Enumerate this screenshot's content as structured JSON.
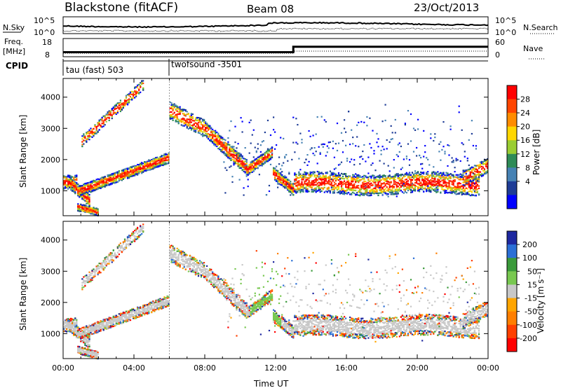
{
  "header": {
    "station": "Blackstone (fitACF)",
    "beam": "Beam 08",
    "date": "23/Oct/2013"
  },
  "noise_panel": {
    "left_label": "N.Sky",
    "right_label": "N.Search",
    "y_ticks_left": [
      "10^5",
      "10^0"
    ],
    "y_ticks_right": [
      "10^5",
      "10^0"
    ]
  },
  "freq_panel": {
    "left_label_line1": "Freq.",
    "left_label_line2": "[MHz]",
    "right_label": "Nave",
    "y_ticks_left": [
      "18",
      "8"
    ],
    "y_ticks_right": [
      "60",
      "0"
    ],
    "freq_mhz": [
      {
        "from_h": 0,
        "to_h": 13,
        "value": 10.5
      },
      {
        "from_h": 13,
        "to_h": 24,
        "value": 13.5
      }
    ]
  },
  "cpid": {
    "label": "CPID",
    "modes": [
      {
        "start_h": 0,
        "name": "tau (fast) 503"
      },
      {
        "start_h": 6,
        "name": "twofsound -3501"
      }
    ]
  },
  "chart_data": [
    {
      "type": "heatmap",
      "name": "power",
      "ylabel": "Slant Range [km]",
      "yticks": [
        1000,
        2000,
        3000,
        4000
      ],
      "ylim": [
        200,
        4600
      ],
      "xlim_h": [
        0,
        24
      ],
      "colorbar": {
        "label": "Power [dB]",
        "ticks": [
          "28",
          "24",
          "20",
          "16",
          "12",
          "8",
          "4"
        ],
        "colors": [
          "#ff0000",
          "#ff4500",
          "#ff8c00",
          "#ffd700",
          "#9acd32",
          "#2e8b57",
          "#4682b4",
          "#1e3c96",
          "#0000ff"
        ]
      }
    },
    {
      "type": "heatmap",
      "name": "velocity",
      "ylabel": "Slant Range [km]",
      "yticks": [
        1000,
        2000,
        3000,
        4000
      ],
      "ylim": [
        200,
        4600
      ],
      "xlim_h": [
        0,
        24
      ],
      "xlabel": "Time UT",
      "xticks": [
        "00:00",
        "04:00",
        "08:00",
        "12:00",
        "16:00",
        "20:00",
        "00:00"
      ],
      "colorbar": {
        "label": "Velocity [m s⁻¹]",
        "ticks": [
          "200",
          "100",
          "50",
          "15",
          "-15",
          "-50",
          "-100",
          "-200"
        ],
        "colors": [
          "#1e28a0",
          "#2b6fd6",
          "#3a9a3a",
          "#78c850",
          "#c8c8c8",
          "#ffa500",
          "#ff7f00",
          "#ff4000",
          "#ff0000"
        ]
      }
    }
  ]
}
